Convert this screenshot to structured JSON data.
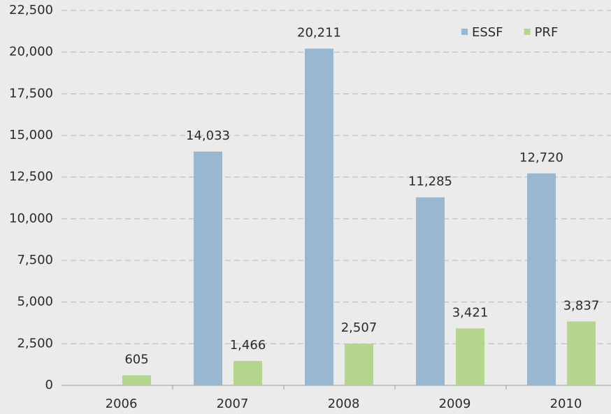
{
  "chart_data": {
    "type": "bar",
    "categories": [
      "2006",
      "2007",
      "2008",
      "2009",
      "2010"
    ],
    "series": [
      {
        "name": "ESSF",
        "color": "#97b8d0",
        "values": [
          null,
          14033,
          20211,
          11285,
          12720
        ],
        "value_labels": [
          null,
          "14,033",
          "20,211",
          "11,285",
          "12,720"
        ]
      },
      {
        "name": "PRF",
        "color": "#b5d58e",
        "values": [
          605,
          1466,
          2507,
          3421,
          3837
        ],
        "value_labels": [
          "605",
          "1,466",
          "2,507",
          "3,421",
          "3,837"
        ]
      }
    ],
    "ylim": [
      0,
      22500
    ],
    "yticks": [
      0,
      {
        "value": 2500,
        "label": "2,500"
      },
      {
        "value": 5000,
        "label": "5,000"
      },
      {
        "value": 7500,
        "label": "7,500"
      },
      {
        "value": 10000,
        "label": "10,000"
      },
      {
        "value": 12500,
        "label": "12,500"
      },
      {
        "value": 15000,
        "label": "15,000"
      },
      {
        "value": 17500,
        "label": "17,500"
      },
      {
        "value": 20000,
        "label": "20,000"
      },
      {
        "value": 22500,
        "label": "22,500"
      }
    ],
    "grid": true,
    "legend": "upper right"
  }
}
